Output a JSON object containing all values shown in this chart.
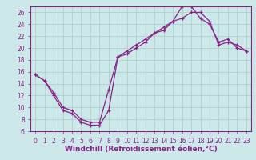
{
  "xlabel": "Windchill (Refroidissement éolien,°C)",
  "xlim": [
    -0.5,
    23.5
  ],
  "ylim": [
    6,
    27
  ],
  "xticks": [
    0,
    1,
    2,
    3,
    4,
    5,
    6,
    7,
    8,
    9,
    10,
    11,
    12,
    13,
    14,
    15,
    16,
    17,
    18,
    19,
    20,
    21,
    22,
    23
  ],
  "yticks": [
    6,
    8,
    10,
    12,
    14,
    16,
    18,
    20,
    22,
    24,
    26
  ],
  "line1_x": [
    0,
    1,
    2,
    3,
    4,
    5,
    6,
    7,
    8,
    9,
    10,
    11,
    12,
    13,
    14,
    15,
    16,
    17,
    18,
    19,
    20,
    21,
    22,
    23
  ],
  "line1_y": [
    15.5,
    14.5,
    12.0,
    9.5,
    9.0,
    7.5,
    7.0,
    7.0,
    9.5,
    18.5,
    19.5,
    20.5,
    21.5,
    22.5,
    23.0,
    24.5,
    27.0,
    27.0,
    25.0,
    24.0,
    21.0,
    21.5,
    20.0,
    19.5
  ],
  "line2_x": [
    0,
    1,
    2,
    3,
    4,
    5,
    6,
    7,
    8,
    9,
    10,
    11,
    12,
    13,
    14,
    15,
    16,
    17,
    18,
    19,
    20,
    21,
    22,
    23
  ],
  "line2_y": [
    15.5,
    14.5,
    12.5,
    10.0,
    9.5,
    8.0,
    7.5,
    7.5,
    13.0,
    18.5,
    19.0,
    20.0,
    21.0,
    22.5,
    23.5,
    24.5,
    25.0,
    26.0,
    26.0,
    24.5,
    20.5,
    21.0,
    20.5,
    19.5
  ],
  "line_color": "#882288",
  "bg_color": "#cce8e8",
  "grid_color": "#aacccc",
  "tick_label_fontsize": 5.5,
  "xlabel_fontsize": 6.5,
  "lw": 0.9,
  "marker_size": 3.5
}
